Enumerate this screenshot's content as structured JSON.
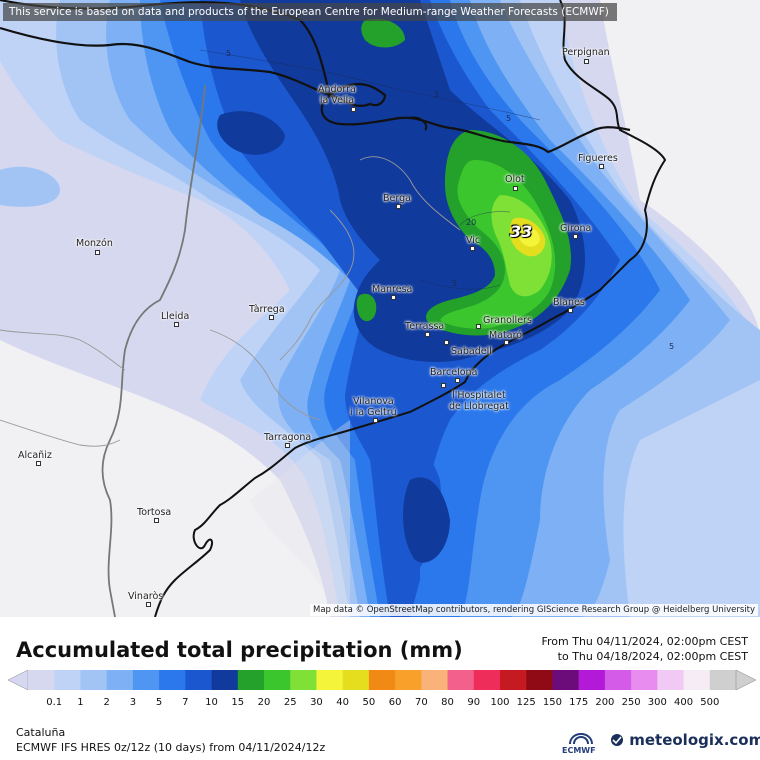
{
  "banner": "This service is based on data and products of the European Centre for Medium-range Weather Forecasts (ECMWF)",
  "attribution": "Map data © OpenStreetMap contributors, rendering GIScience Research Group @ Heidelberg University",
  "title": "Accumulated total precipitation (mm)",
  "period": {
    "from": "From Thu 04/11/2024, 02:00pm CEST",
    "to": "to Thu 04/18/2024, 02:00pm CEST"
  },
  "region": "Cataluña",
  "model_info": "ECMWF IFS HRES 0z/12z (10 days) from 04/11/2024/12z",
  "brand": "meteologix.com",
  "ecmwf_label": "ECMWF",
  "max_value": "33",
  "contour_labels": [
    "5",
    "5",
    "5",
    "5",
    "20"
  ],
  "cities": [
    {
      "name": "Perpignan"
    },
    {
      "name": "Andorra\nla Vella"
    },
    {
      "name": "Figueres"
    },
    {
      "name": "Olot"
    },
    {
      "name": "Berga"
    },
    {
      "name": "Girona"
    },
    {
      "name": "Vic"
    },
    {
      "name": "Monzón"
    },
    {
      "name": "Manresa"
    },
    {
      "name": "Tàrrega"
    },
    {
      "name": "Lleida"
    },
    {
      "name": "Blanes"
    },
    {
      "name": "Granollers"
    },
    {
      "name": "Terrassa"
    },
    {
      "name": "Mataró"
    },
    {
      "name": "Sabadell"
    },
    {
      "name": "Barcelona"
    },
    {
      "name": "Vilanova\ni la Geltrú"
    },
    {
      "name": "l'Hospitalet\nde Llobregat"
    },
    {
      "name": "Tarragona"
    },
    {
      "name": "Alcañiz"
    },
    {
      "name": "Tortosa"
    },
    {
      "name": "Vinaròs"
    }
  ],
  "legend": {
    "ticks": [
      "0.1",
      "1",
      "2",
      "3",
      "5",
      "7",
      "10",
      "15",
      "20",
      "25",
      "30",
      "40",
      "50",
      "60",
      "70",
      "80",
      "90",
      "100",
      "125",
      "150",
      "175",
      "200",
      "250",
      "300",
      "400",
      "500"
    ],
    "colors": [
      "#d6d8ef",
      "#bfd3f6",
      "#a2c4f5",
      "#7eb0f5",
      "#4f95f2",
      "#2b78ec",
      "#1b58d0",
      "#103a9c",
      "#23a12a",
      "#3cc62e",
      "#7fe036",
      "#f4f43a",
      "#e4de1f",
      "#f08a14",
      "#f8a02a",
      "#f8b27a",
      "#f4608c",
      "#ee2d5a",
      "#c61a22",
      "#8f0a14",
      "#6c0c7a",
      "#b21ad8",
      "#d45ae8",
      "#e88cf0",
      "#f2c8f4",
      "#f6ecf6",
      "#cfcfcf"
    ]
  }
}
